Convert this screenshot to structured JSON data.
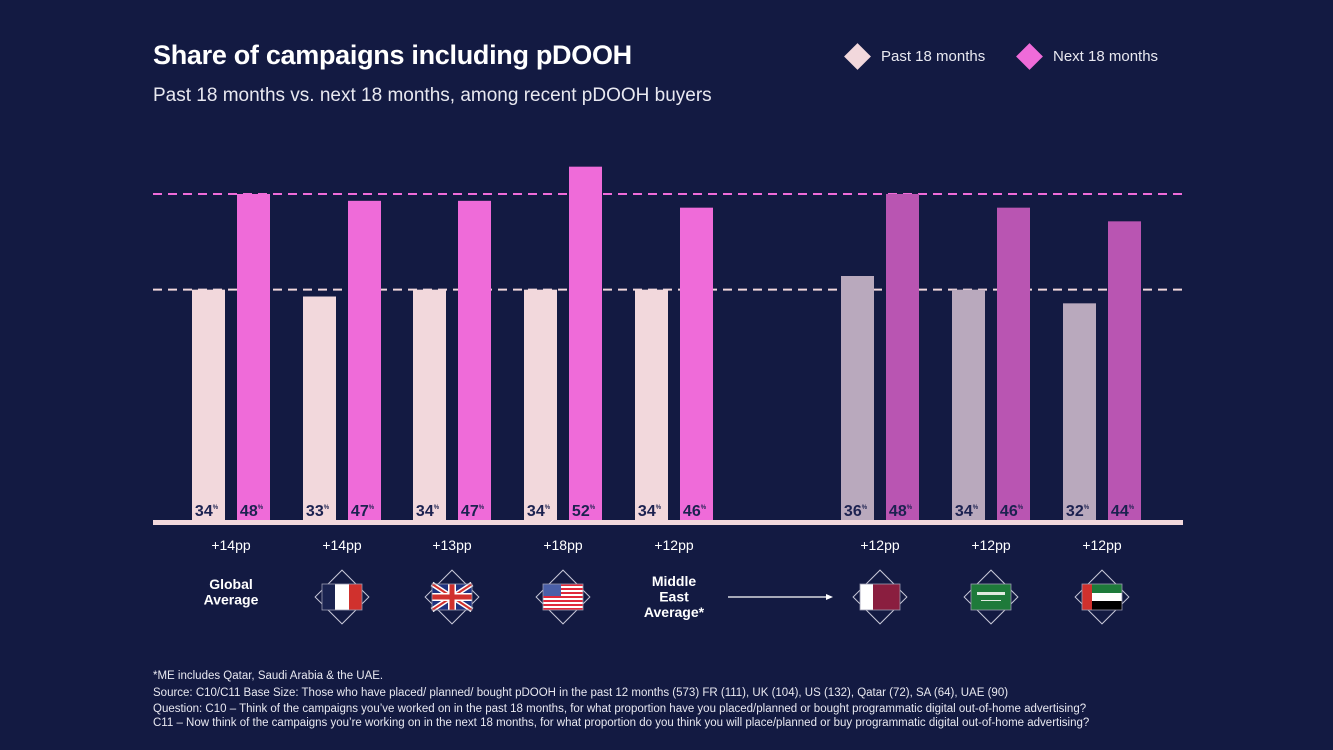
{
  "chart_data": {
    "type": "bar",
    "title": "Share of campaigns including pDOOH",
    "subtitle": "Past 18 months vs. next 18 months, among recent pDOOH buyers",
    "ylim": [
      0,
      55
    ],
    "unit": "%",
    "categories": [
      {
        "label": "Global Average",
        "flag": null
      },
      {
        "label": "",
        "flag": "france-flag-icon"
      },
      {
        "label": "",
        "flag": "uk-flag-icon"
      },
      {
        "label": "",
        "flag": "usa-flag-icon"
      },
      {
        "label": "Middle East Average*",
        "flag": null
      },
      {
        "label": "",
        "flag": "qatar-flag-icon"
      },
      {
        "label": "",
        "flag": "saudi-arabia-flag-icon"
      },
      {
        "label": "",
        "flag": "uae-flag-icon"
      }
    ],
    "series": [
      {
        "name": "Past 18 months",
        "values": [
          34,
          33,
          34,
          34,
          34,
          36,
          34,
          32
        ],
        "color": "#f2d8dc",
        "color_me": "#b9a9bd"
      },
      {
        "name": "Next 18 months",
        "values": [
          48,
          47,
          47,
          52,
          46,
          48,
          46,
          44
        ],
        "color": "#ef6bd9",
        "color_me": "#b955b2"
      }
    ],
    "differences": [
      "+14pp",
      "+14pp",
      "+13pp",
      "+18pp",
      "+12pp",
      "+12pp",
      "+12pp",
      "+12pp"
    ],
    "reference_lines": [
      {
        "value": 48,
        "color": "#ef6bd9",
        "style": "dashed"
      },
      {
        "value": 34,
        "color": "#f2d8dc",
        "style": "dashed"
      }
    ],
    "legend_position": "top-right",
    "grid": false
  },
  "notes": [
    "*ME includes Qatar, Saudi Arabia & the UAE.",
    "Source: C10/C11 Base Size: Those who have placed/ planned/ bought pDOOH in the past 12 months (573) FR (111), UK (104), US (132), Qatar (72), SA (64), UAE (90)",
    "Question: C10 – Think of the campaigns you’ve worked on in the past 18 months, for what proportion have you placed/planned or bought programmatic digital out-of-home advertising?",
    "C11 – Now think of the campaigns you’re working on in the next 18 months, for what proportion do you think you will place/planned or buy programmatic digital out-of-home advertising?"
  ],
  "colors": {
    "background": "#131a42",
    "label_text": "#1c2250"
  }
}
